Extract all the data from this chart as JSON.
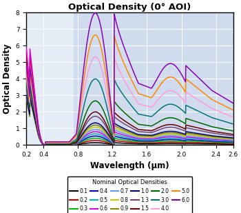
{
  "title": "Optical Density (0° AOI)",
  "xlabel": "Wavelength (μm)",
  "ylabel": "Optical Density",
  "xlim": [
    0.2,
    2.6
  ],
  "ylim": [
    0,
    8
  ],
  "xticks": [
    0.2,
    0.4,
    0.8,
    1.2,
    1.6,
    2.0,
    2.4,
    2.6
  ],
  "yticks": [
    0,
    1,
    2,
    3,
    4,
    5,
    6,
    7,
    8
  ],
  "nir_region_start": 0.75,
  "series": {
    "0.1": {
      "color": "#000000"
    },
    "0.2": {
      "color": "#cc0000"
    },
    "0.3": {
      "color": "#00bb00"
    },
    "0.4": {
      "color": "#0000cc"
    },
    "0.5": {
      "color": "#00bbbb"
    },
    "0.6": {
      "color": "#dd00dd"
    },
    "0.7": {
      "color": "#6699ff"
    },
    "0.8": {
      "color": "#cccc00"
    },
    "0.9": {
      "color": "#888800"
    },
    "1.0": {
      "color": "#000077"
    },
    "1.3": {
      "color": "#774477"
    },
    "1.5": {
      "color": "#660000"
    },
    "2.0": {
      "color": "#006600"
    },
    "3.0": {
      "color": "#007777"
    },
    "4.0": {
      "color": "#ff99dd"
    },
    "5.0": {
      "color": "#ff8800"
    },
    "6.0": {
      "color": "#8800bb"
    }
  },
  "legend_title": "Nominal Optical Densities",
  "legend_order": [
    "0.1",
    "0.2",
    "0.3",
    "0.4",
    "0.5",
    "0.6",
    "0.7",
    "0.8",
    "0.9",
    "1.0",
    "1.3",
    "1.5",
    "2.0",
    "3.0",
    "4.0",
    "5.0",
    "6.0"
  ]
}
